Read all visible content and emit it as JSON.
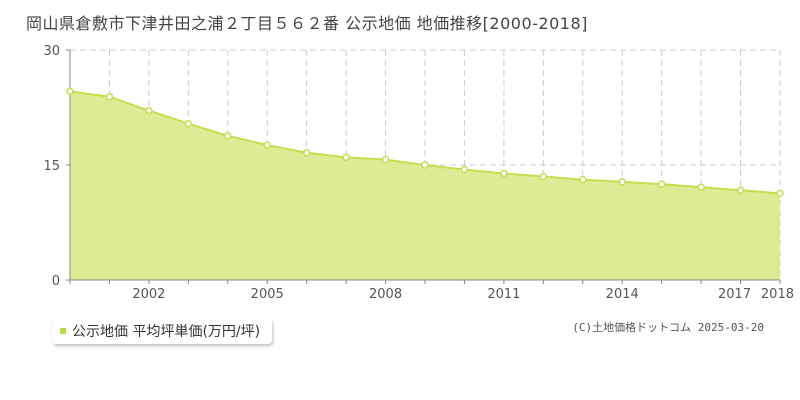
{
  "title": "岡山県倉敷市下津井田之浦２丁目５６２番 公示地価 地価推移[2000-2018]",
  "legend_label": "公示地価 平均坪単価(万円/坪)",
  "copyright": "(C)土地価格ドットコム 2025-03-20",
  "colors": {
    "area": "#ddec94",
    "line": "#c4de4e",
    "marker_fill": "#ffffff"
  },
  "chart_data": {
    "type": "area",
    "title": "岡山県倉敷市下津井田之浦２丁目５６２番 公示地価 地価推移[2000-2018]",
    "x": [
      2000,
      2001,
      2002,
      2003,
      2004,
      2005,
      2006,
      2007,
      2008,
      2009,
      2010,
      2011,
      2012,
      2013,
      2014,
      2015,
      2016,
      2017,
      2018
    ],
    "series": [
      {
        "name": "公示地価 平均坪単価(万円/坪)",
        "values": [
          24.6,
          23.9,
          22.1,
          20.4,
          18.8,
          17.6,
          16.6,
          16.0,
          15.7,
          15.0,
          14.4,
          13.9,
          13.5,
          13.1,
          12.8,
          12.5,
          12.1,
          11.7,
          11.3
        ]
      }
    ],
    "ylim": [
      0,
      30
    ],
    "y_ticks": [
      "0",
      "15",
      "30"
    ],
    "x_tick_labels": [
      "2002",
      "2005",
      "2008",
      "2011",
      "2014",
      "2017",
      "2018"
    ],
    "xlabel": "",
    "ylabel": "",
    "grid": true,
    "legend_position": "bottom-left"
  }
}
